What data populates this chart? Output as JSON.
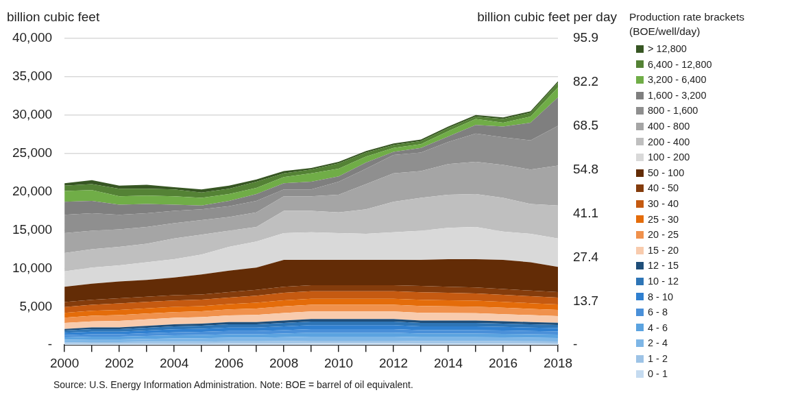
{
  "chart_data": {
    "type": "area",
    "stacked": true,
    "ylabel": "billion cubic feet",
    "y2label": "billion cubic feet per day",
    "legend_title": "Production rate brackets (BOE/well/day)",
    "legend": "right",
    "grid": "y",
    "x": [
      2000,
      2001,
      2002,
      2003,
      2004,
      2005,
      2006,
      2007,
      2008,
      2009,
      2010,
      2011,
      2012,
      2013,
      2014,
      2015,
      2016,
      2017,
      2018
    ],
    "xlim": [
      2000,
      2018
    ],
    "xticks": [
      2000,
      {
        "value": 2001,
        "label": null
      },
      2002,
      {
        "value": 2003,
        "label": null
      },
      2004,
      {
        "value": 2005,
        "label": null
      },
      2006,
      {
        "value": 2007,
        "label": null
      },
      2008,
      {
        "value": 2009,
        "label": null
      },
      2010,
      {
        "value": 2011,
        "label": null
      },
      2012,
      {
        "value": 2013,
        "label": null
      },
      2014,
      {
        "value": 2015,
        "label": null
      },
      2016,
      {
        "value": 2017,
        "label": null
      },
      2018
    ],
    "ylim": [
      0,
      40000
    ],
    "yticks": [
      {
        "value": 0,
        "label": "-"
      },
      {
        "value": 5000,
        "label": "5,000"
      },
      {
        "value": 10000,
        "label": "10,000"
      },
      {
        "value": 15000,
        "label": "15,000"
      },
      {
        "value": 20000,
        "label": "20,000"
      },
      {
        "value": 25000,
        "label": "25,000"
      },
      {
        "value": 30000,
        "label": "30,000"
      },
      {
        "value": 35000,
        "label": "35,000"
      },
      {
        "value": 40000,
        "label": "40,000"
      }
    ],
    "y2lim": [
      0,
      95.9
    ],
    "y2ticks": [
      {
        "value": 0,
        "label": "-"
      },
      13.7,
      27.4,
      41.1,
      54.8,
      68.5,
      82.2,
      95.9
    ],
    "annotations": [
      "Source: U.S. Energy Information Administration. Note: BOE = barrel of oil equivalent."
    ],
    "series": [
      {
        "name": "0 - 1",
        "color": "#c5dbf0",
        "values": [
          150,
          160,
          160,
          180,
          190,
          200,
          210,
          210,
          220,
          240,
          240,
          240,
          240,
          220,
          220,
          220,
          220,
          210,
          200
        ]
      },
      {
        "name": "1 - 2",
        "color": "#9dc3e6",
        "values": [
          190,
          210,
          210,
          230,
          240,
          250,
          270,
          270,
          290,
          310,
          310,
          310,
          310,
          290,
          290,
          290,
          280,
          270,
          260
        ]
      },
      {
        "name": "2 - 4",
        "color": "#7eb6e6",
        "values": [
          340,
          370,
          370,
          400,
          430,
          450,
          480,
          480,
          510,
          540,
          540,
          540,
          540,
          510,
          510,
          510,
          500,
          480,
          460
        ]
      },
      {
        "name": "4 - 6",
        "color": "#5ba3e0",
        "values": [
          320,
          350,
          350,
          370,
          410,
          420,
          450,
          450,
          480,
          510,
          510,
          510,
          510,
          480,
          480,
          480,
          460,
          450,
          440
        ]
      },
      {
        "name": "6 - 8",
        "color": "#4a90d9",
        "values": [
          290,
          320,
          320,
          350,
          380,
          390,
          420,
          420,
          450,
          480,
          480,
          480,
          480,
          450,
          450,
          450,
          430,
          420,
          410
        ]
      },
      {
        "name": "8 - 10",
        "color": "#3080d0",
        "values": [
          310,
          340,
          340,
          370,
          400,
          420,
          450,
          450,
          480,
          510,
          510,
          510,
          510,
          480,
          480,
          480,
          470,
          450,
          440
        ]
      },
      {
        "name": "10 - 12",
        "color": "#2e75b6",
        "values": [
          290,
          320,
          320,
          350,
          380,
          390,
          420,
          420,
          450,
          480,
          480,
          480,
          480,
          450,
          450,
          450,
          430,
          420,
          410
        ]
      },
      {
        "name": "12 - 15",
        "color": "#1f4e79",
        "values": [
          210,
          230,
          230,
          250,
          270,
          280,
          300,
          300,
          320,
          330,
          330,
          330,
          330,
          320,
          320,
          320,
          310,
          300,
          280
        ]
      },
      {
        "name": "15 - 20",
        "color": "#f8cbad",
        "values": [
          770,
          790,
          840,
          840,
          840,
          840,
          860,
          920,
          970,
          970,
          970,
          970,
          970,
          990,
          970,
          950,
          920,
          900,
          880
        ]
      },
      {
        "name": "20 - 25",
        "color": "#f0914c",
        "values": [
          700,
          720,
          760,
          760,
          760,
          760,
          780,
          840,
          880,
          880,
          880,
          880,
          880,
          900,
          880,
          860,
          840,
          820,
          800
        ]
      },
      {
        "name": "25 - 30",
        "color": "#e46c0a",
        "values": [
          630,
          650,
          680,
          680,
          680,
          680,
          700,
          760,
          790,
          790,
          790,
          790,
          790,
          810,
          790,
          770,
          760,
          740,
          720
        ]
      },
      {
        "name": "30 - 40",
        "color": "#c55a11",
        "values": [
          770,
          790,
          840,
          840,
          840,
          840,
          860,
          920,
          970,
          970,
          970,
          970,
          970,
          990,
          970,
          950,
          920,
          900,
          880
        ]
      },
      {
        "name": "40 - 50",
        "color": "#843c0c",
        "values": [
          630,
          650,
          680,
          680,
          680,
          680,
          700,
          760,
          790,
          790,
          790,
          790,
          790,
          810,
          790,
          770,
          760,
          740,
          720
        ]
      },
      {
        "name": "50 - 100",
        "color": "#632c06",
        "values": [
          2000,
          2100,
          2200,
          2200,
          2300,
          2600,
          2800,
          2900,
          3500,
          3300,
          3300,
          3300,
          3300,
          3400,
          3600,
          3700,
          3800,
          3700,
          3300
        ]
      },
      {
        "name": "100 - 200",
        "color": "#d9d9d9",
        "values": [
          2000,
          2100,
          2100,
          2300,
          2400,
          2600,
          3100,
          3400,
          3500,
          3600,
          3500,
          3400,
          3600,
          3800,
          4100,
          4200,
          3700,
          3700,
          3700
        ]
      },
      {
        "name": "200 - 400",
        "color": "#bfbfbf",
        "values": [
          2400,
          2400,
          2400,
          2400,
          2700,
          2600,
          2100,
          1900,
          2900,
          2800,
          2700,
          3200,
          4000,
          4300,
          4300,
          4300,
          4400,
          3900,
          4300
        ]
      },
      {
        "name": "400 - 800",
        "color": "#a5a5a5",
        "values": [
          2600,
          2400,
          2300,
          2200,
          2000,
          1900,
          1800,
          1900,
          1900,
          1900,
          2300,
          3300,
          3700,
          3500,
          4000,
          4200,
          4300,
          4500,
          5200
        ]
      },
      {
        "name": "800 - 1,600",
        "color": "#8f8f8f",
        "values": [
          2400,
          2300,
          1900,
          1800,
          1600,
          1400,
          1400,
          1500,
          900,
          900,
          1700,
          2000,
          2400,
          2400,
          2900,
          3700,
          3600,
          3800,
          5200
        ]
      },
      {
        "name": "1,600 - 3,200",
        "color": "#7f7f7f",
        "values": [
          1700,
          1600,
          1300,
          1200,
          800,
          500,
          700,
          900,
          800,
          1000,
          700,
          800,
          400,
          600,
          700,
          1100,
          1400,
          2300,
          3700
        ]
      },
      {
        "name": "3,200 - 6,400",
        "color": "#70ad47",
        "values": [
          1400,
          1400,
          1100,
          1100,
          1100,
          1000,
          900,
          800,
          800,
          1100,
          1000,
          800,
          500,
          500,
          700,
          800,
          500,
          800,
          1300
        ]
      },
      {
        "name": "6,400 - 12,800",
        "color": "#548235",
        "values": [
          700,
          800,
          1000,
          900,
          900,
          700,
          700,
          800,
          500,
          500,
          700,
          500,
          400,
          400,
          400,
          300,
          500,
          500,
          600
        ]
      },
      {
        "name": "> 12,800",
        "color": "#375623",
        "values": [
          300,
          500,
          400,
          500,
          300,
          400,
          400,
          300,
          300,
          200,
          200,
          200,
          200,
          200,
          200,
          200,
          200,
          200,
          200
        ]
      }
    ]
  }
}
